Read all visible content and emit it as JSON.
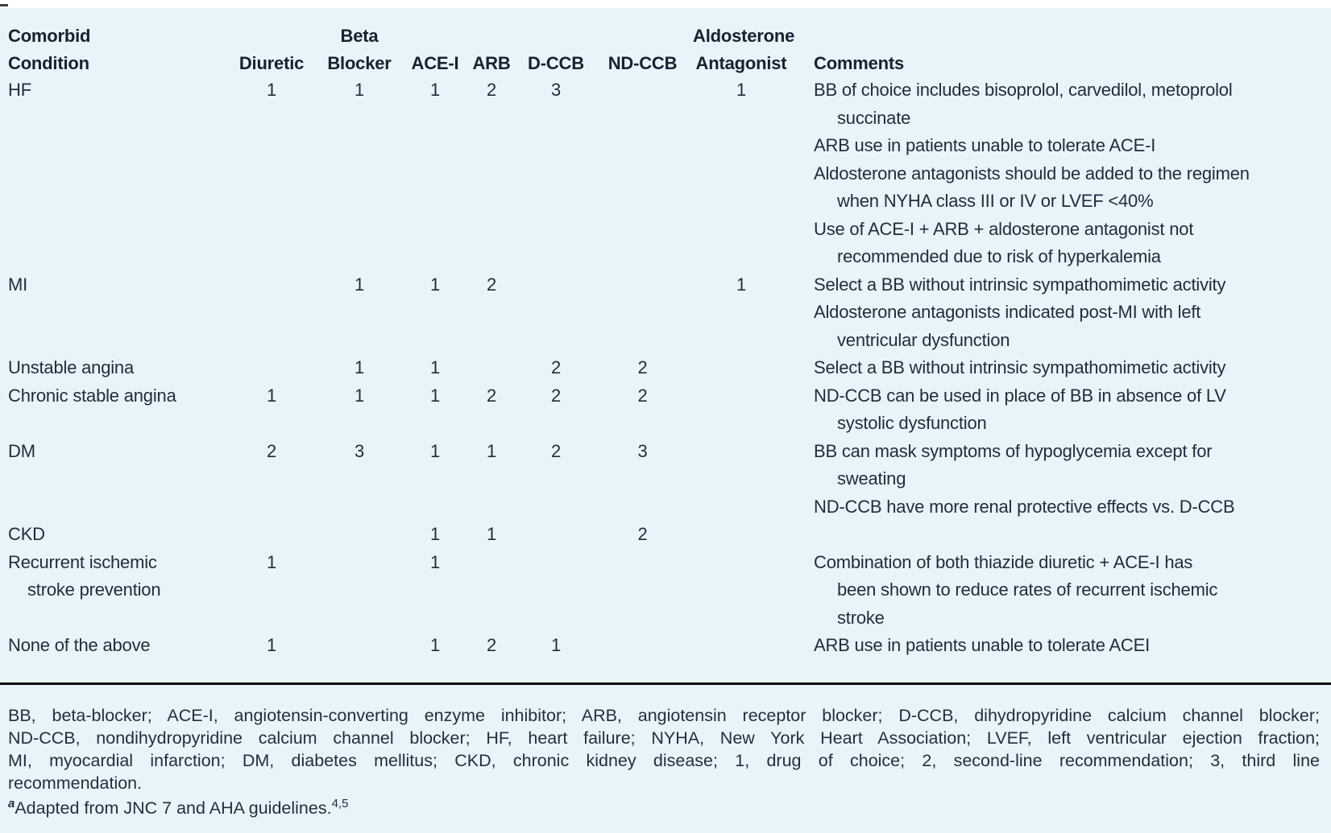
{
  "page": {
    "panel_background": "#e8f4f9",
    "text_color": "#1f2d3a",
    "rule_color": "#050505"
  },
  "table": {
    "columns": [
      {
        "id": "condition",
        "header_line1": "Comorbid",
        "header_line2": "Condition"
      },
      {
        "id": "diuretic",
        "header_line1": "",
        "header_line2": "Diuretic"
      },
      {
        "id": "beta_blocker",
        "header_line1": "Beta",
        "header_line2": "Blocker"
      },
      {
        "id": "ace_i",
        "header_line1": "",
        "header_line2": "ACE-I"
      },
      {
        "id": "arb",
        "header_line1": "",
        "header_line2": "ARB"
      },
      {
        "id": "d_ccb",
        "header_line1": "",
        "header_line2": "D-CCB"
      },
      {
        "id": "nd_ccb",
        "header_line1": "",
        "header_line2": "ND-CCB"
      },
      {
        "id": "aldosterone_antagonist",
        "header_line1": "Aldosterone",
        "header_line2": "Antagonist"
      },
      {
        "id": "comments",
        "header_line1": "",
        "header_line2": "Comments"
      }
    ],
    "rows": [
      {
        "condition": [
          "HF"
        ],
        "diuretic": "1",
        "beta_blocker": "1",
        "ace_i": "1",
        "arb": "2",
        "d_ccb": "3",
        "nd_ccb": "",
        "aldosterone_antagonist": "1",
        "comments": [
          [
            "BB of choice includes bisoprolol, carvedilol, metoprolol",
            "succinate"
          ],
          [
            "ARB use in patients unable to tolerate ACE-I"
          ],
          [
            "Aldosterone antagonists should be added to the regimen",
            "when NYHA class III or IV or LVEF <40%"
          ],
          [
            "Use of ACE-I + ARB + aldosterone antagonist not",
            "recommended due to risk of hyperkalemia"
          ]
        ]
      },
      {
        "condition": [
          "MI"
        ],
        "diuretic": "",
        "beta_blocker": "1",
        "ace_i": "1",
        "arb": "2",
        "d_ccb": "",
        "nd_ccb": "",
        "aldosterone_antagonist": "1",
        "comments": [
          [
            "Select a BB without intrinsic sympathomimetic activity"
          ],
          [
            "Aldosterone antagonists indicated post-MI with left",
            "ventricular dysfunction"
          ]
        ]
      },
      {
        "condition": [
          "Unstable angina"
        ],
        "diuretic": "",
        "beta_blocker": "1",
        "ace_i": "1",
        "arb": "",
        "d_ccb": "2",
        "nd_ccb": "2",
        "aldosterone_antagonist": "",
        "comments": [
          [
            "Select a BB without intrinsic sympathomimetic activity"
          ]
        ]
      },
      {
        "condition": [
          "Chronic stable angina"
        ],
        "diuretic": "1",
        "beta_blocker": "1",
        "ace_i": "1",
        "arb": "2",
        "d_ccb": "2",
        "nd_ccb": "2",
        "aldosterone_antagonist": "",
        "comments": [
          [
            "ND-CCB can be used in place of BB in absence of LV",
            "systolic dysfunction"
          ]
        ]
      },
      {
        "condition": [
          "DM"
        ],
        "diuretic": "2",
        "beta_blocker": "3",
        "ace_i": "1",
        "arb": "1",
        "d_ccb": "2",
        "nd_ccb": "3",
        "aldosterone_antagonist": "",
        "comments": [
          [
            "BB can mask symptoms of hypoglycemia except for",
            "sweating"
          ],
          [
            "ND-CCB have more renal protective effects vs. D-CCB"
          ]
        ]
      },
      {
        "condition": [
          "CKD"
        ],
        "diuretic": "",
        "beta_blocker": "",
        "ace_i": "1",
        "arb": "1",
        "d_ccb": "",
        "nd_ccb": "2",
        "aldosterone_antagonist": "",
        "comments": []
      },
      {
        "condition": [
          "Recurrent ischemic",
          "stroke prevention"
        ],
        "diuretic": "1",
        "beta_blocker": "",
        "ace_i": "1",
        "arb": "",
        "d_ccb": "",
        "nd_ccb": "",
        "aldosterone_antagonist": "",
        "comments": [
          [
            "Combination of both thiazide diuretic + ACE-I has",
            "been shown to reduce rates of recurrent ischemic",
            "stroke"
          ]
        ]
      },
      {
        "condition": [
          "None of the above"
        ],
        "diuretic": "1",
        "beta_blocker": "",
        "ace_i": "1",
        "arb": "2",
        "d_ccb": "1",
        "nd_ccb": "",
        "aldosterone_antagonist": "",
        "comments": [
          [
            "ARB use in patients unable to tolerate ACEI"
          ]
        ]
      }
    ]
  },
  "footnotes": {
    "abbreviation_lines": [
      "BB, beta-blocker; ACE-I, angiotensin-converting enzyme inhibitor; ARB, angiotensin receptor blocker; D-CCB, dihydropyridine calcium channel blocker;",
      "ND-CCB, nondihydropyridine calcium channel blocker; HF, heart failure; NYHA, New York Heart Association; LVEF, left ventricular ejection fraction;",
      "MI, myocardial infarction; DM, diabetes mellitus; CKD, chronic kidney disease; 1, drug of choice; 2, second-line recommendation; 3, third line",
      "recommendation."
    ],
    "source_marker": "a",
    "source_text": "Adapted from JNC 7 and AHA guidelines.",
    "source_reference": "4,5"
  }
}
